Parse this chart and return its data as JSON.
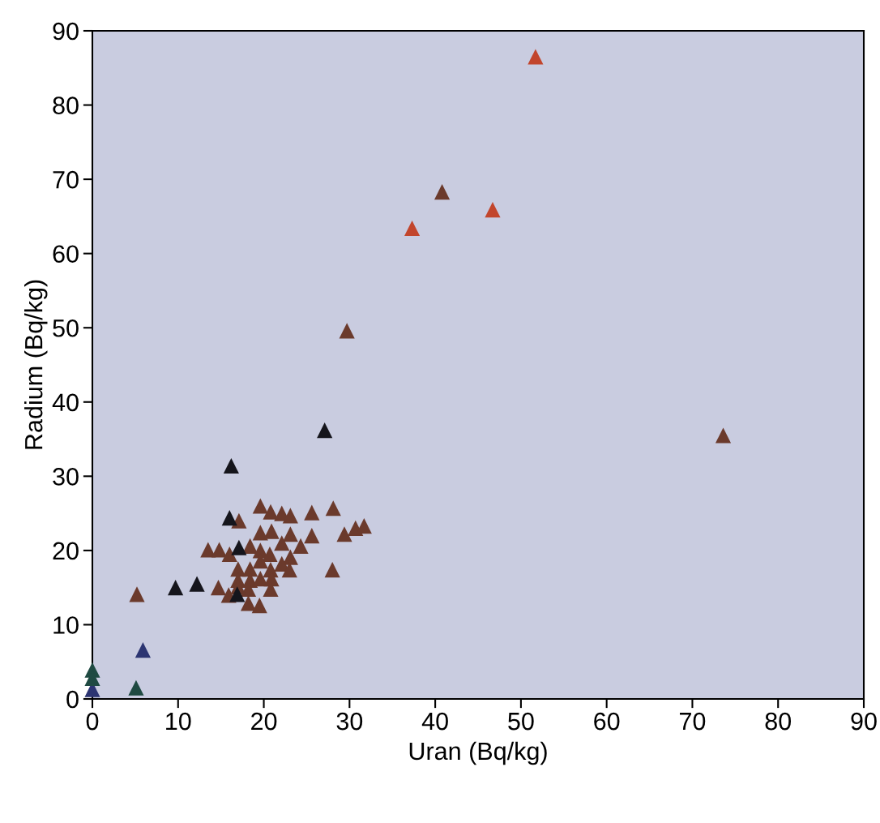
{
  "chart_data": {
    "type": "scatter",
    "xlabel": "Uran (Bq/kg)",
    "ylabel": "Radium (Bq/kg)",
    "xlim": [
      0,
      90
    ],
    "ylim": [
      0,
      90
    ],
    "xticks": [
      0,
      10,
      20,
      30,
      40,
      50,
      60,
      70,
      80,
      90
    ],
    "yticks": [
      0,
      10,
      20,
      30,
      40,
      50,
      60,
      70,
      80,
      90
    ],
    "grid": false,
    "legend": false,
    "marker": "triangle",
    "series": [
      {
        "color": "#c2452c",
        "x": [
          51.7,
          37.3,
          46.7
        ],
        "values": [
          86.5,
          63.4,
          65.9
        ]
      },
      {
        "color": "#6b3a2c",
        "x": [
          40.8,
          29.7,
          73.6,
          17.1,
          19.6,
          20.8,
          22.1,
          23.1,
          25.6,
          28.1,
          29.4,
          30.7,
          31.7,
          19.6,
          20.9,
          23.1,
          25.6,
          13.5,
          14.8,
          16.0,
          18.4,
          19.6,
          20.7,
          22.1,
          24.3,
          23.1,
          19.6,
          22.1,
          23.0,
          17.0,
          18.4,
          20.8,
          28.0,
          17.0,
          18.4,
          19.6,
          20.9,
          14.7,
          15.9,
          18.2,
          20.8,
          18.2,
          19.5,
          17.0,
          5.2
        ],
        "values": [
          68.3,
          49.6,
          35.5,
          24.0,
          26.0,
          25.2,
          25.0,
          24.7,
          25.1,
          25.7,
          22.2,
          23.0,
          23.3,
          22.4,
          22.6,
          22.2,
          22.0,
          20.1,
          20.1,
          19.5,
          20.6,
          20.0,
          19.5,
          21.0,
          20.6,
          19.1,
          18.6,
          18.2,
          17.4,
          17.5,
          17.5,
          17.4,
          17.4,
          16.0,
          16.0,
          16.2,
          16.2,
          15.0,
          14.0,
          14.8,
          14.8,
          12.9,
          12.6,
          15.1,
          14.1
        ]
      },
      {
        "color": "#15151c",
        "x": [
          27.1,
          16.2,
          16.0,
          17.1,
          16.9,
          9.7,
          12.2
        ],
        "values": [
          36.2,
          31.4,
          24.4,
          20.4,
          14.1,
          15.0,
          15.5
        ]
      },
      {
        "color": "#2c3572",
        "x": [
          5.9,
          0.0
        ],
        "values": [
          6.6,
          1.3
        ]
      },
      {
        "color": "#1f4a42",
        "x": [
          5.1,
          0.0,
          0.0
        ],
        "values": [
          1.5,
          3.9,
          2.8
        ]
      }
    ]
  }
}
